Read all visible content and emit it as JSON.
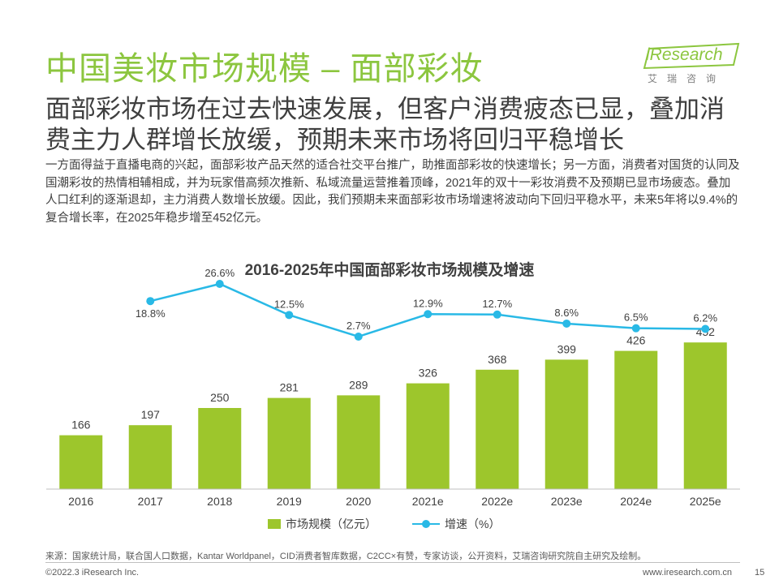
{
  "header": {
    "title": "中国美妆市场规模 – 面部彩妆",
    "logo_text": "iResearch",
    "logo_sub": "艾瑞咨询"
  },
  "subtitle": "面部彩妆市场在过去快速发展，但客户消费疲态已显，叠加消费主力人群增长放缓，预期未来市场将回归平稳增长",
  "body": "一方面得益于直播电商的兴起，面部彩妆产品天然的适合社交平台推广，助推面部彩妆的快速增长；另一方面，消费者对国货的认同及国潮彩妆的热情相辅相成，并为玩家借高频次推新、私域流量运营推着顶峰，2021年的双十一彩妆消费不及预期已显市场疲态。叠加人口红利的逐渐退却，主力消费人数增长放缓。因此，我们预期未来面部彩妆市场增速将波动向下回归平稳水平，未来5年将以9.4%的复合增长率，在2025年稳步增至452亿元。",
  "chart_data": {
    "type": "bar",
    "title": "2016-2025年中国面部彩妆市场规模及增速",
    "categories": [
      "2016",
      "2017",
      "2018",
      "2019",
      "2020",
      "2021e",
      "2022e",
      "2023e",
      "2024e",
      "2025e"
    ],
    "series": [
      {
        "name": "市场规模（亿元）",
        "type": "bar",
        "color": "#9dc62c",
        "values": [
          166,
          197,
          250,
          281,
          289,
          326,
          368,
          399,
          426,
          452
        ]
      },
      {
        "name": "增速（%）",
        "type": "line",
        "color": "#29b9e6",
        "values": [
          null,
          18.8,
          26.6,
          12.5,
          2.7,
          12.9,
          12.7,
          8.6,
          6.5,
          6.2
        ],
        "labels": [
          "",
          "18.8%",
          "26.6%",
          "12.5%",
          "2.7%",
          "12.9%",
          "12.7%",
          "8.6%",
          "6.5%",
          "6.2%"
        ]
      }
    ],
    "legend": [
      "市场规模（亿元）",
      "增速（%）"
    ],
    "legend_position": "bottom"
  },
  "footer": {
    "source": "来源：国家统计局，联合国人口数据，Kantar Worldpanel，CID消费者智库数据，C2CC×有赞，专家访谈，公开资料，艾瑞咨询研究院自主研究及绘制。",
    "copyright": "©2022.3 iResearch Inc.",
    "url": "www.iresearch.com.cn",
    "page": "15"
  }
}
